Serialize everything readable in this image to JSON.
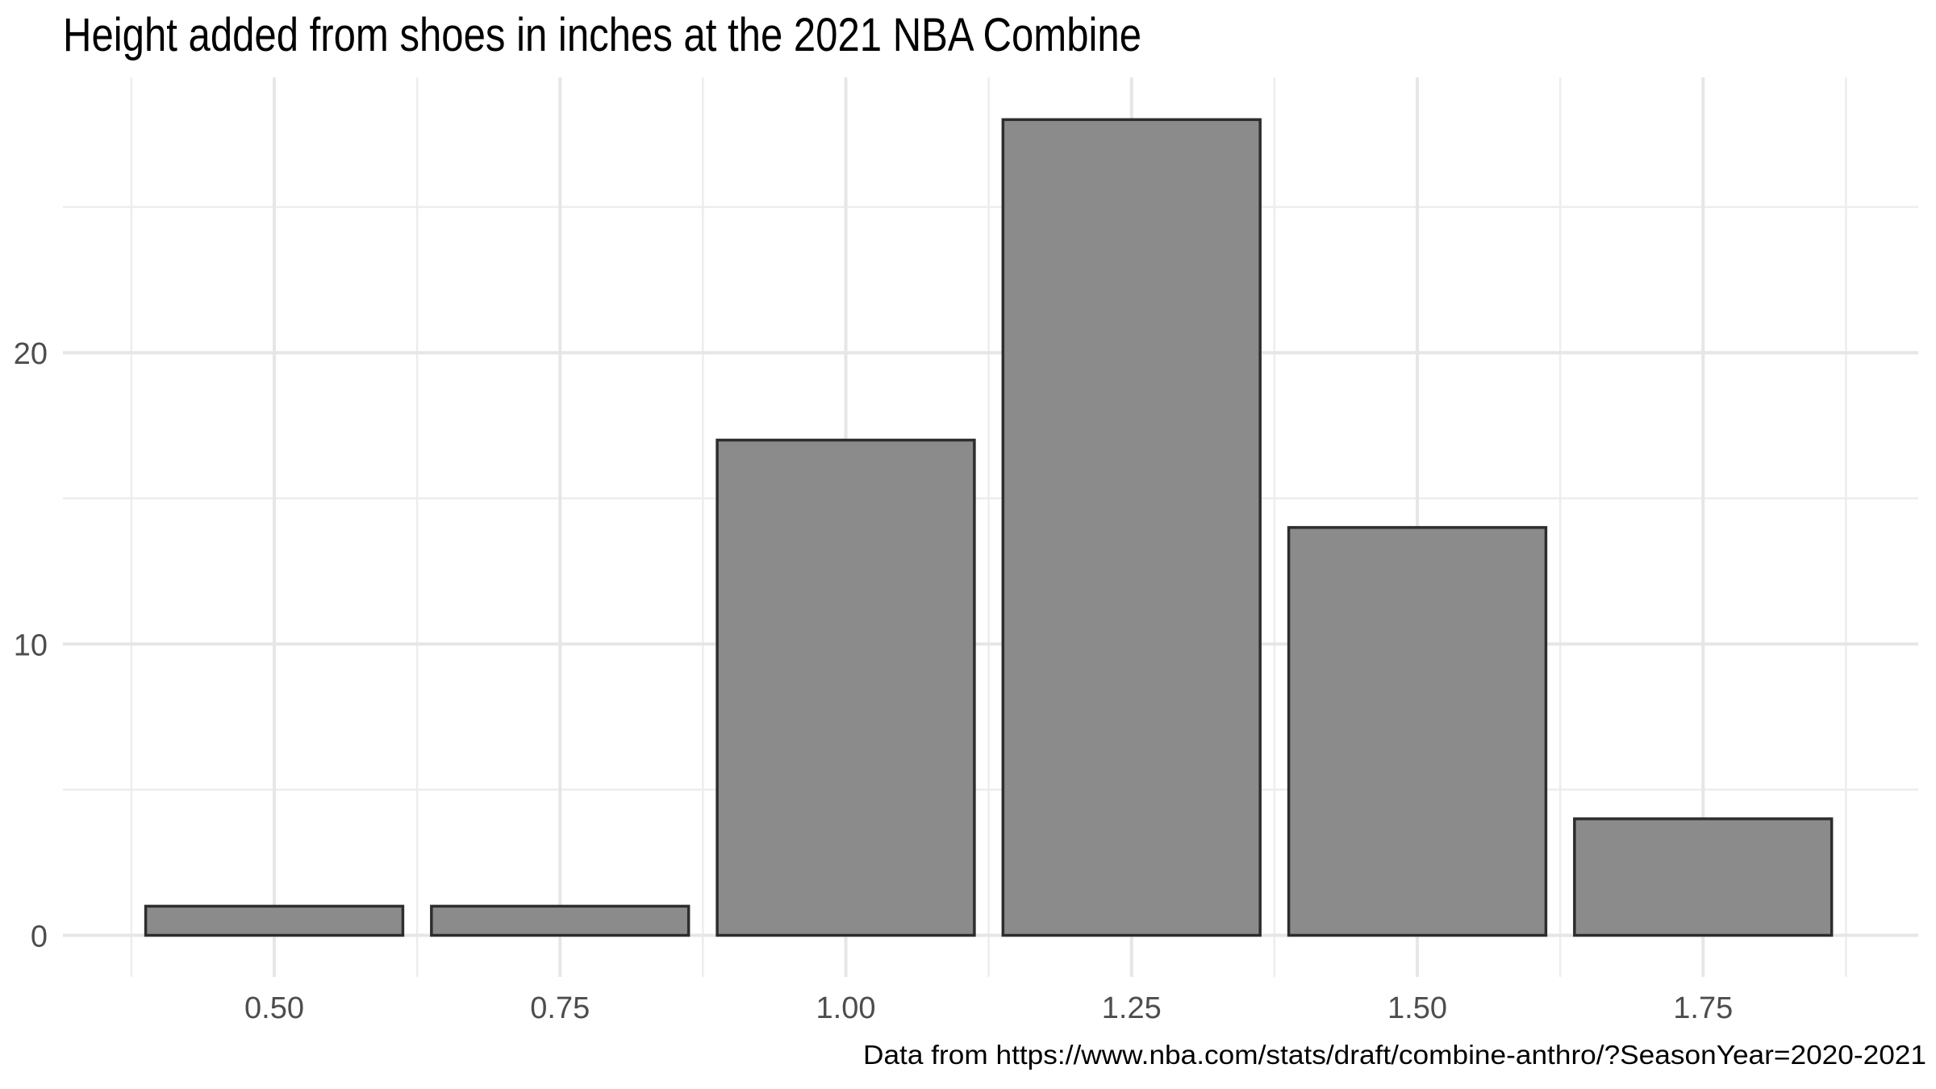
{
  "chart_data": {
    "type": "bar",
    "title": "Height added from shoes in inches at the 2021 NBA Combine",
    "caption": "Data from https://www.nba.com/stats/draft/combine-anthro/?SeasonYear=2020-2021",
    "xlabel": "",
    "ylabel": "",
    "categories": [
      "0.50",
      "0.75",
      "1.00",
      "1.25",
      "1.50",
      "1.75"
    ],
    "x": [
      0.5,
      0.75,
      1.0,
      1.25,
      1.5,
      1.75
    ],
    "values": [
      1,
      1,
      17,
      28,
      14,
      4
    ],
    "bar_width_units": 0.225,
    "x_axis": {
      "tick_values": [
        0.5,
        0.75,
        1.0,
        1.25,
        1.5,
        1.75
      ],
      "tick_labels": [
        "0.50",
        "0.75",
        "1.00",
        "1.25",
        "1.50",
        "1.75"
      ],
      "minor_gridlines": [
        0.375,
        0.625,
        0.875,
        1.125,
        1.375,
        1.625,
        1.875
      ],
      "range": [
        0.31375,
        1.93625
      ]
    },
    "y_axis": {
      "tick_values": [
        0,
        10,
        20
      ],
      "tick_labels": [
        "0",
        "10",
        "20"
      ],
      "minor_gridlines": [
        5,
        15,
        25
      ],
      "range": [
        -1.4,
        29.4
      ]
    },
    "grid": "major-and-minor",
    "legend": "none",
    "colors": {
      "background": "#FFFFFF",
      "bar_fill": "#8B8B8B",
      "bar_stroke": "#2D2D2D",
      "grid_major": "#E6E6E6",
      "grid_minor": "#EDEDED",
      "axis_text": "#4D4D4D",
      "title_text": "#000000",
      "caption_text": "#000000"
    }
  }
}
